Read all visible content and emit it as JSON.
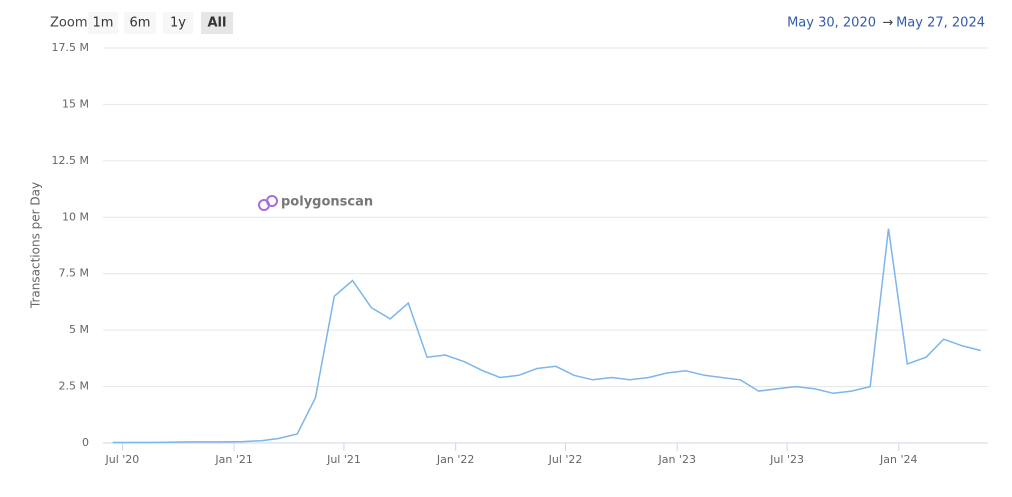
{
  "ui": {
    "zoom_label": "Zoom",
    "buttons": [
      "1m",
      "6m",
      "1y",
      "All"
    ],
    "active_button": 3,
    "range_start": "May 30, 2020",
    "range_arrow": "→",
    "range_end": "May 27, 2024",
    "watermark": "polygonscan"
  },
  "chart_data": {
    "type": "line",
    "y_label": "Transactions per Day",
    "color": "#7cb5ec",
    "grid": true,
    "xlim": [
      "2020-05-30",
      "2024-05-27"
    ],
    "xticks": [
      {
        "value": "2020-07",
        "label": "Jul '20"
      },
      {
        "value": "2021-01",
        "label": "Jan '21"
      },
      {
        "value": "2021-07",
        "label": "Jul '21"
      },
      {
        "value": "2022-01",
        "label": "Jan '22"
      },
      {
        "value": "2022-07",
        "label": "Jul '22"
      },
      {
        "value": "2023-01",
        "label": "Jan '23"
      },
      {
        "value": "2023-07",
        "label": "Jul '23"
      },
      {
        "value": "2024-01",
        "label": "Jan '24"
      }
    ],
    "ylim": [
      0,
      17500000
    ],
    "yticks": [
      0,
      {
        "value": 2500000,
        "label": "2.5 M"
      },
      {
        "value": 5000000,
        "label": "5 M"
      },
      {
        "value": 7500000,
        "label": "7.5 M"
      },
      {
        "value": 10000000,
        "label": "10 M"
      },
      {
        "value": 12500000,
        "label": "12.5 M"
      },
      {
        "value": 15000000,
        "label": "15 M"
      },
      {
        "value": 17500000,
        "label": "17.5 M"
      }
    ],
    "x": [
      "2020-06",
      "2020-07",
      "2020-08",
      "2020-09",
      "2020-10",
      "2020-11",
      "2020-12",
      "2021-01",
      "2021-02",
      "2021-03",
      "2021-04",
      "2021-05",
      "2021-06",
      "2021-07",
      "2021-08",
      "2021-09",
      "2021-10",
      "2021-11",
      "2021-12",
      "2022-01",
      "2022-02",
      "2022-03",
      "2022-04",
      "2022-05",
      "2022-06",
      "2022-07",
      "2022-08",
      "2022-09",
      "2022-10",
      "2022-11",
      "2022-12",
      "2023-01",
      "2023-02",
      "2023-03",
      "2023-04",
      "2023-05",
      "2023-06",
      "2023-07",
      "2023-08",
      "2023-09",
      "2023-10",
      "2023-11",
      "2023-12",
      "2024-01",
      "2024-02",
      "2024-03",
      "2024-04",
      "2024-05"
    ],
    "values": [
      20000,
      20000,
      20000,
      30000,
      50000,
      50000,
      50000,
      60000,
      100000,
      200000,
      400000,
      2000000,
      6500000,
      7200000,
      6000000,
      5500000,
      6200000,
      3800000,
      3900000,
      3600000,
      3200000,
      2900000,
      3000000,
      3300000,
      3400000,
      3000000,
      2800000,
      2900000,
      2800000,
      2900000,
      3100000,
      3200000,
      3000000,
      2900000,
      2800000,
      2300000,
      2400000,
      2500000,
      2400000,
      2200000,
      2300000,
      2500000,
      9500000,
      3500000,
      3800000,
      4600000,
      4300000,
      4100000
    ]
  }
}
